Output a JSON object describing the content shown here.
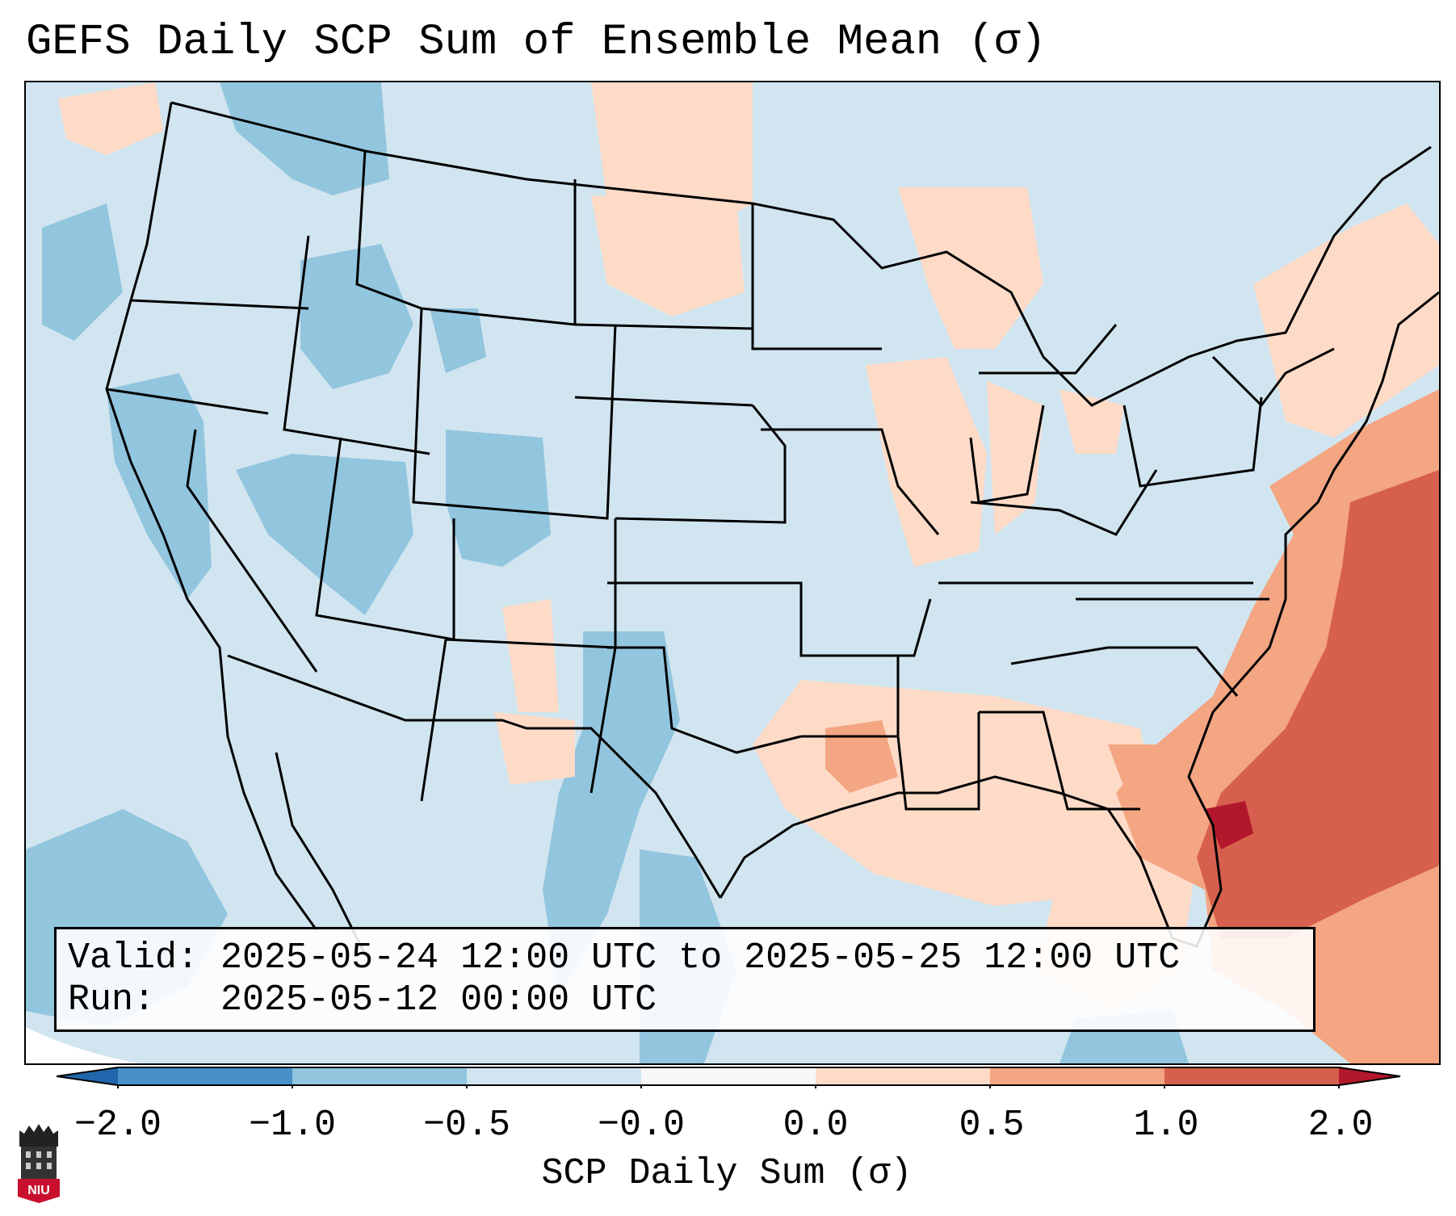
{
  "title": "GEFS Daily SCP Sum of Ensemble Mean (σ)",
  "info": {
    "valid_label": "Valid:",
    "valid_value": "2025-05-24 12:00 UTC to 2025-05-25 12:00 UTC",
    "run_label": "Run:",
    "run_value": "2025-05-12 00:00 UTC"
  },
  "colorbar": {
    "label": "SCP Daily Sum (σ)",
    "ticks": [
      "−2.0",
      "−1.0",
      "−0.5",
      "−0.0",
      "0.0",
      "0.5",
      "1.0",
      "2.0"
    ],
    "colors": [
      "#4a90c8",
      "#92c5de",
      "#d1e5f0",
      "#f7f7f7",
      "#fddbc7",
      "#f4a582",
      "#d6604d",
      "#b2182b"
    ]
  },
  "map": {
    "base_color": "#d1e5f0",
    "region_colors": {
      "blue": "#92c5de",
      "light_red": "#fddbc7",
      "mid_red": "#f4a582",
      "red": "#d6604d",
      "dark_red": "#b2182b"
    }
  },
  "logo": {
    "text": "NIU",
    "icon": "university-seal-icon"
  }
}
